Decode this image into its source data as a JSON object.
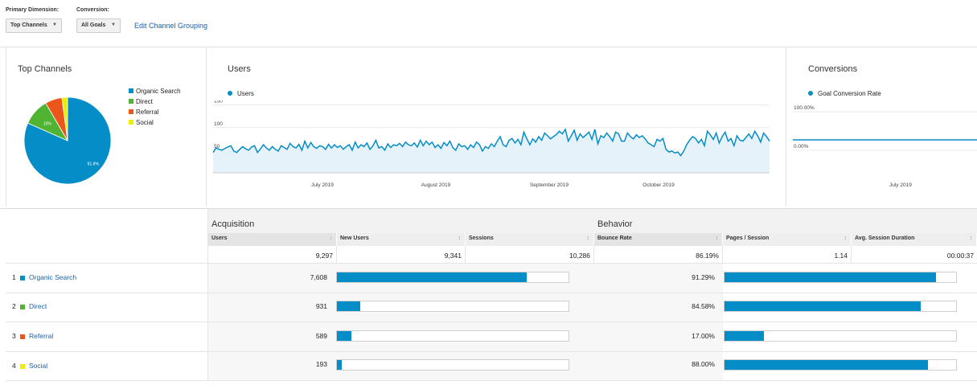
{
  "controls": {
    "primary_dimension_label": "Primary Dimension:",
    "primary_dimension_value": "Top Channels",
    "conversion_label": "Conversion:",
    "conversion_value": "All Goals",
    "edit_link": "Edit Channel Grouping"
  },
  "top_channels": {
    "title": "Top Channels",
    "legend": [
      "Organic Search",
      "Direct",
      "Referral",
      "Social"
    ],
    "pie_labels": [
      "81.8%",
      "10%"
    ]
  },
  "users_card": {
    "title": "Users",
    "legend": "Users"
  },
  "conversions_card": {
    "title": "Conversions",
    "legend": "Goal Conversion Rate",
    "y_ticks": [
      "100.00%",
      "0.00%"
    ],
    "x_labels": [
      "July 2019"
    ]
  },
  "colors": {
    "accent": "#058dc7",
    "organic": "#058dc7",
    "direct": "#50b432",
    "referral": "#ed561b",
    "social": "#edef00",
    "link": "#1a5fa8"
  },
  "chart_data": {
    "type": "pie",
    "series": [
      {
        "name": "Organic Search",
        "value": 81.8
      },
      {
        "name": "Direct",
        "value": 10.0
      },
      {
        "name": "Referral",
        "value": 6.3
      },
      {
        "name": "Social",
        "value": 2.1
      }
    ],
    "users_line": {
      "type": "area",
      "yticks": [
        150,
        100,
        50
      ],
      "ylim": [
        0,
        160
      ],
      "xlabels": [
        "July 2019",
        "August 2019",
        "September 2019",
        "October 2019"
      ],
      "values": [
        45,
        55,
        52,
        50,
        54,
        57,
        60,
        48,
        45,
        52,
        58,
        53,
        50,
        57,
        60,
        45,
        53,
        62,
        55,
        50,
        58,
        52,
        48,
        60,
        56,
        52,
        65,
        58,
        55,
        63,
        50,
        70,
        55,
        67,
        58,
        54,
        60,
        58,
        52,
        63,
        55,
        62,
        56,
        60,
        52,
        58,
        62,
        50,
        68,
        55,
        62,
        58,
        66,
        52,
        60,
        72,
        55,
        58,
        50,
        64,
        56,
        62,
        60,
        65,
        58,
        68,
        62,
        60,
        66,
        57,
        72,
        60,
        70,
        62,
        68,
        56,
        62,
        54,
        67,
        60,
        70,
        56,
        50,
        64,
        58,
        60,
        52,
        62,
        56,
        68,
        62,
        48,
        58,
        54,
        64,
        58,
        70,
        80,
        62,
        58,
        72,
        76,
        66,
        74,
        62,
        90,
        75,
        62,
        75,
        68,
        80,
        72,
        88,
        82,
        75,
        80,
        85,
        92,
        86,
        96,
        70,
        82,
        94,
        72,
        86,
        78,
        84,
        90,
        74,
        96,
        64,
        82,
        78,
        88,
        80,
        70,
        90,
        86,
        70,
        70,
        88,
        80,
        75,
        84,
        78,
        82,
        75,
        66,
        62,
        58,
        74,
        70,
        76,
        52,
        46,
        48,
        44,
        46,
        38,
        48,
        62,
        72,
        80,
        76,
        66,
        74,
        60,
        92,
        84,
        74,
        88,
        66,
        80,
        90,
        70,
        76,
        60,
        82,
        72,
        70,
        78,
        86,
        76,
        92,
        82,
        68,
        88,
        80,
        70
      ],
      "values_note": ""
    },
    "conversion_line": {
      "type": "line",
      "yticks": [
        "100.00%",
        "0.00%"
      ],
      "values": [
        0,
        0
      ]
    }
  },
  "table": {
    "groups": [
      "Acquisition",
      "Behavior"
    ],
    "columns": [
      "Users",
      "New Users",
      "Sessions",
      "Bounce Rate",
      "Pages / Session",
      "Avg. Session Duration"
    ],
    "sort_indicator": "↓",
    "totals": [
      "9,297",
      "9,341",
      "10,286",
      "86.19%",
      "1.14",
      "00:00:37"
    ],
    "rows": [
      {
        "index": "1",
        "name": "Organic Search",
        "users": "7,608",
        "users_share": 0.818,
        "bounce": "91.29%",
        "bounce_share": 0.9129
      },
      {
        "index": "2",
        "name": "Direct",
        "users": "931",
        "users_share": 0.1,
        "bounce": "84.58%",
        "bounce_share": 0.8458
      },
      {
        "index": "3",
        "name": "Referral",
        "users": "589",
        "users_share": 0.063,
        "bounce": "17.00%",
        "bounce_share": 0.17
      },
      {
        "index": "4",
        "name": "Social",
        "users": "193",
        "users_share": 0.021,
        "bounce": "88.00%",
        "bounce_share": 0.88
      }
    ]
  }
}
